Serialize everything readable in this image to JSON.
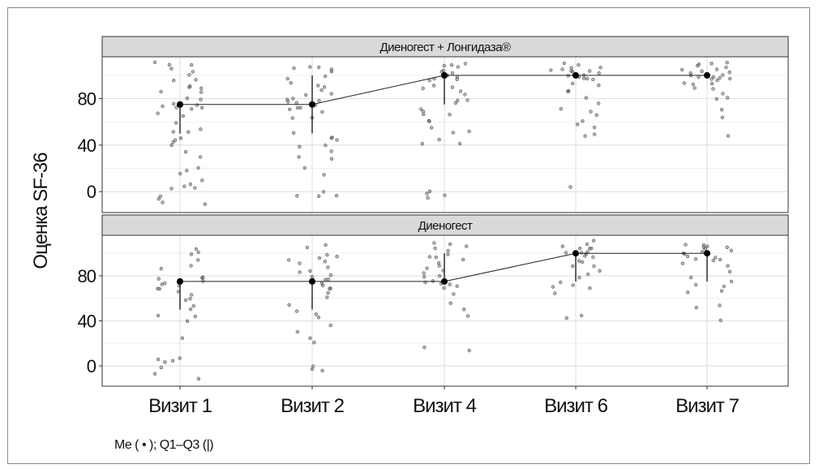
{
  "chart_data": {
    "type": "scatter",
    "ylabel": "Оценка SF-36",
    "xlabel": "",
    "categories": [
      "Визит 1",
      "Визит 2",
      "Визит 4",
      "Визит 6",
      "Визит 7"
    ],
    "yticks": [
      0,
      40,
      80
    ],
    "ylim": [
      -18,
      116
    ],
    "grid": true,
    "note": "Me ( • ); Q1–Q3 (|)",
    "panels": [
      {
        "title": "Диеногест + Лонгидаза®",
        "median": [
          75,
          75,
          100,
          100,
          100
        ],
        "q1": [
          50,
          50,
          75,
          100,
          100
        ],
        "q3": [
          75,
          100,
          100,
          100,
          100
        ],
        "points": [
          [
            110,
            110,
            109,
            105,
            103,
            100,
            97,
            95,
            92,
            90,
            88,
            86,
            85,
            80,
            78,
            76,
            75,
            74,
            73,
            72,
            70,
            68,
            65,
            60,
            55,
            52,
            50,
            47,
            45,
            43,
            40,
            35,
            30,
            20,
            18,
            15,
            10,
            7,
            5,
            3,
            2,
            -5,
            -6,
            -8,
            -10
          ],
          [
            108,
            107,
            105,
            104,
            102,
            100,
            98,
            95,
            92,
            90,
            88,
            85,
            82,
            80,
            78,
            77,
            76,
            75,
            74,
            73,
            72,
            70,
            68,
            65,
            62,
            50,
            48,
            45,
            43,
            40,
            38,
            35,
            30,
            28,
            20,
            15,
            0,
            -3,
            -5,
            -5
          ],
          [
            111,
            110,
            108,
            106,
            105,
            104,
            102,
            100,
            99,
            98,
            97,
            95,
            92,
            90,
            88,
            85,
            83,
            80,
            78,
            75,
            72,
            70,
            68,
            65,
            62,
            60,
            55,
            52,
            50,
            45,
            42,
            40,
            -3,
            -2,
            0,
            -4
          ],
          [
            110,
            109,
            108,
            107,
            106,
            105,
            104,
            103,
            102,
            101,
            100,
            100,
            99,
            98,
            97,
            96,
            95,
            93,
            90,
            88,
            85,
            80,
            75,
            72,
            70,
            65,
            60,
            58,
            55,
            50,
            48,
            5
          ],
          [
            111,
            110,
            109,
            108,
            107,
            106,
            105,
            104,
            103,
            102,
            101,
            100,
            100,
            99,
            98,
            97,
            96,
            95,
            94,
            93,
            92,
            90,
            88,
            85,
            82,
            80,
            70,
            65,
            48
          ]
        ]
      },
      {
        "title": "Диеногест",
        "median": [
          75,
          75,
          75,
          100,
          100
        ],
        "q1": [
          50,
          50,
          75,
          75,
          75
        ],
        "q3": [
          75,
          75,
          100,
          100,
          100
        ],
        "points": [
          [
            104,
            100,
            98,
            95,
            90,
            85,
            80,
            78,
            77,
            76,
            75,
            74,
            73,
            72,
            70,
            68,
            65,
            63,
            60,
            57,
            52,
            50,
            45,
            44,
            40,
            25,
            8,
            7,
            5,
            3,
            0,
            -8,
            -10
          ],
          [
            108,
            104,
            100,
            98,
            96,
            95,
            92,
            90,
            88,
            85,
            82,
            80,
            78,
            76,
            75,
            74,
            72,
            70,
            68,
            65,
            60,
            55,
            50,
            45,
            42,
            35,
            30,
            25,
            20,
            0,
            -2,
            -5
          ],
          [
            110,
            108,
            106,
            104,
            102,
            100,
            98,
            96,
            94,
            92,
            90,
            88,
            85,
            82,
            80,
            78,
            76,
            75,
            74,
            72,
            70,
            68,
            65,
            55,
            50,
            45,
            15,
            17
          ],
          [
            110,
            108,
            106,
            105,
            104,
            103,
            102,
            101,
            100,
            99,
            98,
            96,
            94,
            92,
            90,
            88,
            85,
            80,
            78,
            75,
            72,
            70,
            68,
            65,
            45,
            43
          ],
          [
            108,
            107,
            106,
            105,
            104,
            103,
            102,
            101,
            100,
            99,
            98,
            97,
            96,
            95,
            93,
            90,
            88,
            85,
            80,
            75,
            72,
            70,
            68,
            65,
            55,
            52,
            40
          ]
        ]
      }
    ]
  }
}
